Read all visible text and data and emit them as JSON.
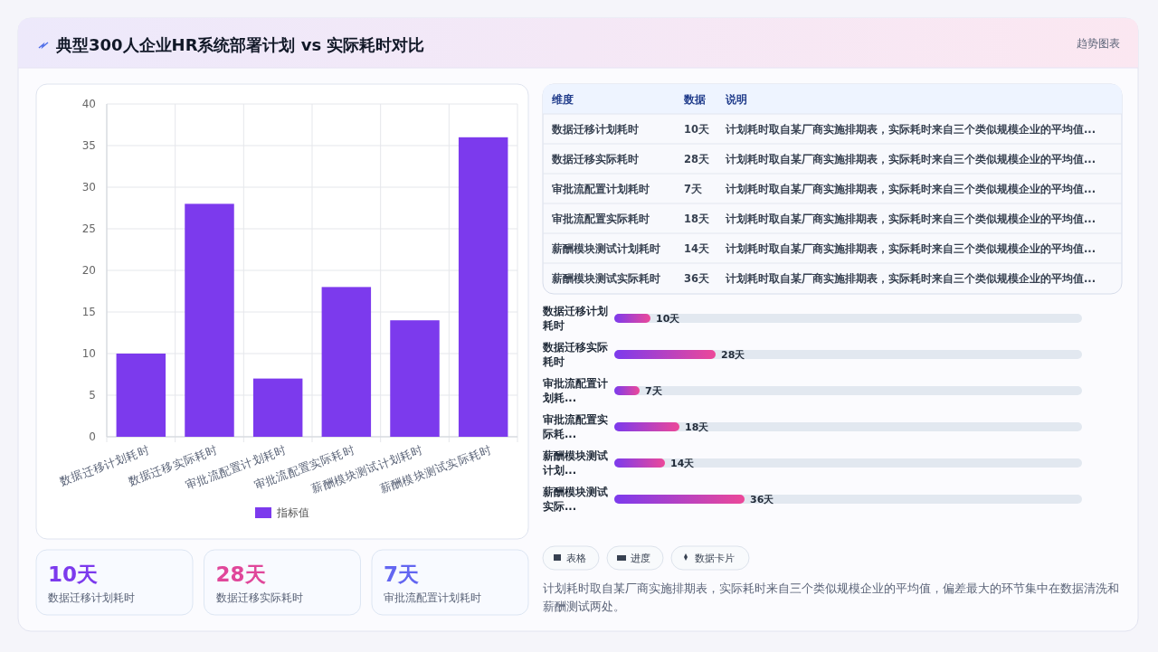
{
  "chart_data": [
    {
      "type": "bar",
      "title": "典型300人企业HR系统部署计划 vs 实际耗时对比",
      "annotations": [
        "趋势图表"
      ],
      "categories": [
        "数据迁移计划耗时",
        "数据迁移实际耗时",
        "审批流配置计划耗时",
        "审批流配置实际耗时",
        "薪酬模块测试计划耗时",
        "薪酬模块测试实际耗时"
      ],
      "series": [
        {
          "name": "指标值",
          "color": "#7c3aed",
          "values": [
            10,
            28,
            7,
            18,
            14,
            36
          ]
        }
      ],
      "ylim": [
        0,
        40
      ],
      "yticks": [
        0,
        5,
        10,
        15,
        20,
        25,
        30,
        35,
        40
      ],
      "grid": true,
      "legend": "bottom"
    },
    {
      "type": "other",
      "annotations": [
        "维度",
        "数据",
        "说明",
        "计划耗时取自某厂商实施排期表，实际耗时来自三个类似规模企业的平均值...",
        "计划耗时取自某厂商实施排期表，实际耗时来自三个类似规模企业的平均值...",
        "计划耗时取自某厂商实施排期表，实际耗时来自三个类似规模企业的平均值...",
        "计划耗时取自某厂商实施排期表，实际耗时来自三个类似规模企业的平均值...",
        "计划耗时取自某厂商实施排期表，实际耗时来自三个类似规模企业的平均值...",
        "计划耗时取自某厂商实施排期表，实际耗时来自三个类似规模企业的平均值..."
      ],
      "categories": [
        "数据迁移计划耗时",
        "数据迁移实际耗时",
        "审批流配置计划耗时",
        "审批流配置实际耗时",
        "薪酬模块测试计划耗时",
        "薪酬模块测试实际耗时"
      ],
      "value_labels": [
        "10天",
        "28天",
        "7天",
        "18天",
        "14天",
        "36天"
      ]
    },
    {
      "type": "bar",
      "orientation": "horizontal",
      "categories": [
        "数据迁移计划耗时",
        "数据迁移实际耗时",
        "审批流配置计划耗...",
        "审批流配置实际耗...",
        "薪酬模块测试计划...",
        "薪酬模块测试实际..."
      ],
      "values": [
        10,
        28,
        7,
        18,
        14,
        36
      ],
      "value_labels": [
        "10天",
        "28天",
        "7天",
        "18天",
        "14天",
        "36天"
      ],
      "color": "#7c3aed"
    },
    {
      "type": "other",
      "categories": [
        "数据迁移计划耗时",
        "数据迁移实际耗时",
        "审批流配置计划耗时"
      ],
      "value_labels": [
        "10天",
        "28天",
        "7天"
      ]
    },
    {
      "type": "other",
      "annotations": [
        "表格",
        "进度",
        "数据卡片",
        "计划耗时取自某厂商实施排期表，实际耗时来自三个类似规模企业的平均值，偏差最大的环节集中在数据清洗和薪酬测试两处。"
      ]
    }
  ]
}
